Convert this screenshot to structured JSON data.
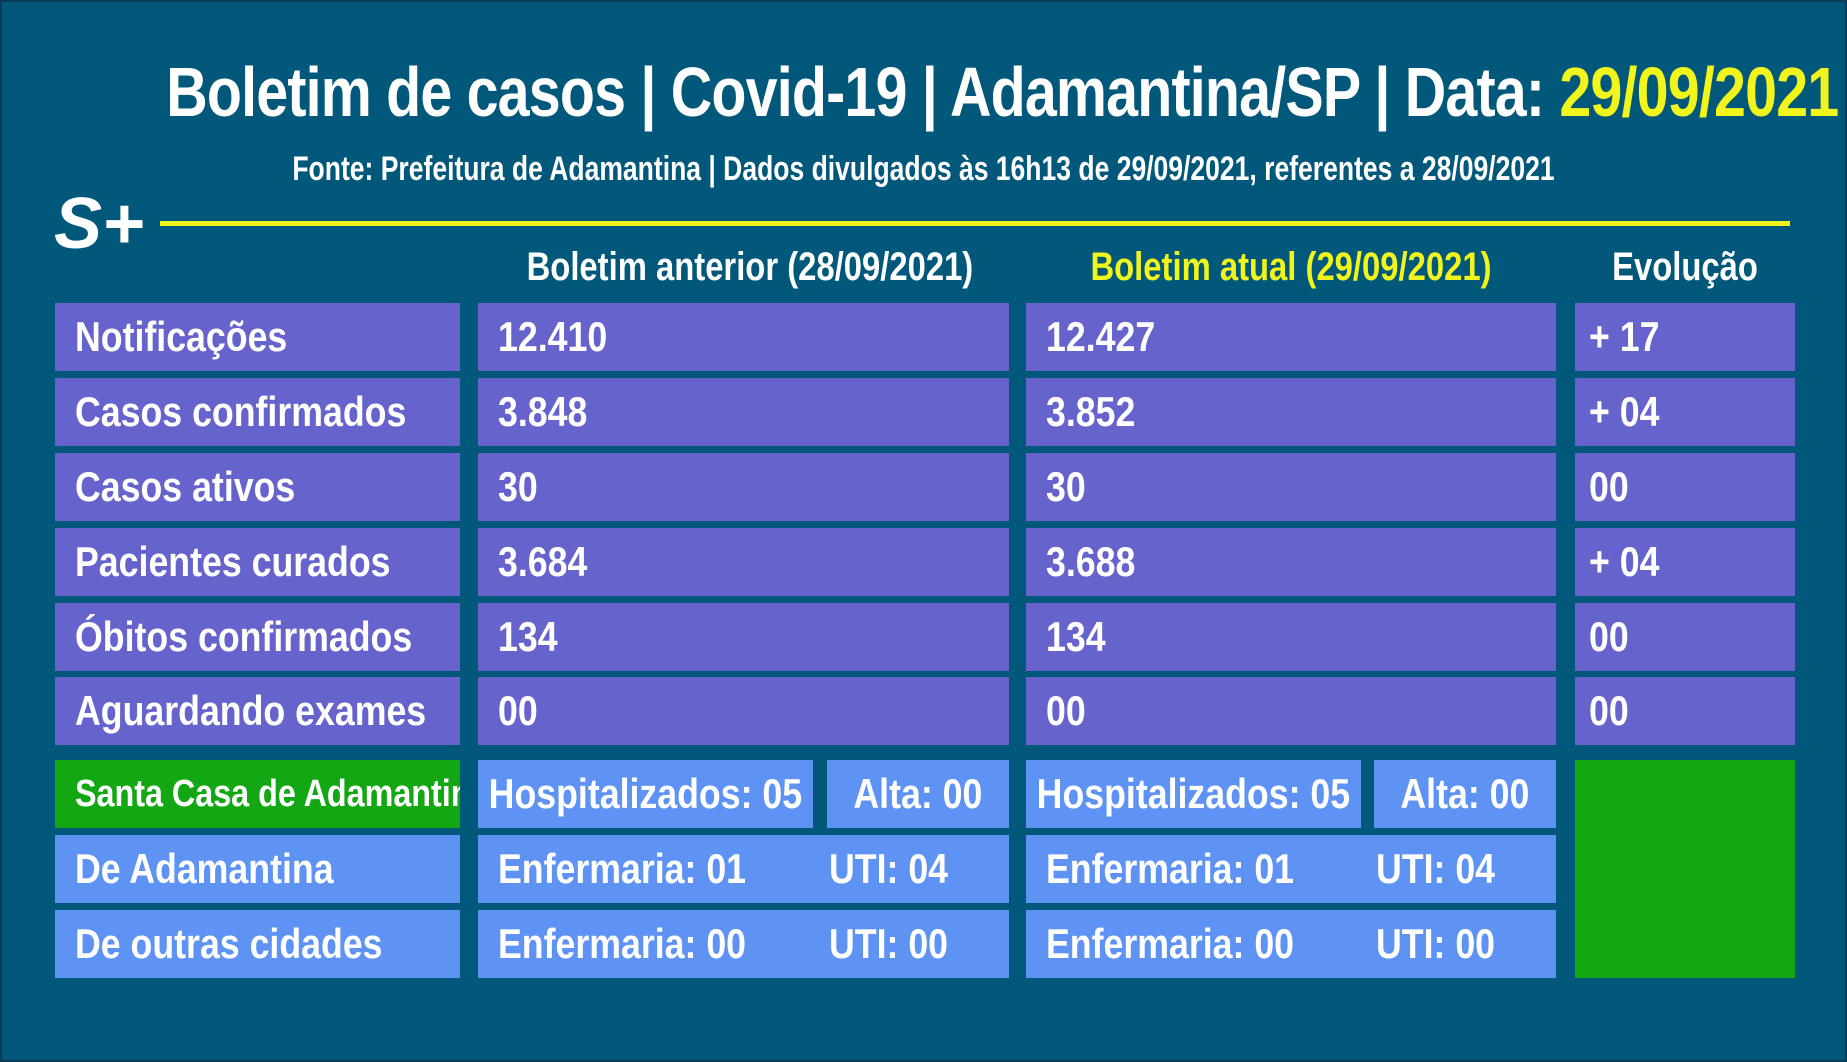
{
  "header": {
    "title_prefix": "Boletim de casos | Covid-19 | Adamantina/SP | Data: ",
    "title_date": "29/09/2021",
    "subtitle": "Fonte: Prefeitura de Adamantina | Dados divulgados às 16h13 de 29/09/2021, referentes a 28/09/2021",
    "logo": "S+"
  },
  "columns": {
    "previous": "Boletim anterior (28/09/2021)",
    "current": "Boletim atual (29/09/2021)",
    "evolution": "Evolução"
  },
  "rows": [
    {
      "label": "Notificações",
      "previous": "12.410",
      "current": "12.427",
      "evolution": "+ 17"
    },
    {
      "label": "Casos confirmados",
      "previous": "3.848",
      "current": "3.852",
      "evolution": "+ 04"
    },
    {
      "label": "Casos ativos",
      "previous": "30",
      "current": "30",
      "evolution": "00"
    },
    {
      "label": "Pacientes curados",
      "previous": "3.684",
      "current": "3.688",
      "evolution": "+ 04"
    },
    {
      "label": "Óbitos confirmados",
      "previous": "134",
      "current": "134",
      "evolution": "00"
    },
    {
      "label": "Aguardando exames",
      "previous": "00",
      "current": "00",
      "evolution": "00"
    }
  ],
  "hospital": {
    "label": "Santa Casa de Adamantina",
    "previous_hospitalized": "Hospitalizados: 05",
    "previous_discharged": "Alta: 00",
    "current_hospitalized": "Hospitalizados: 05",
    "current_discharged": "Alta: 00"
  },
  "origin": [
    {
      "label": "De Adamantina",
      "previous_ward": "Enfermaria: 01",
      "previous_icu": "UTI: 04",
      "current_ward": "Enfermaria: 01",
      "current_icu": "UTI: 04"
    },
    {
      "label": "De outras cidades",
      "previous_ward": "Enfermaria: 00",
      "previous_icu": "UTI: 00",
      "current_ward": "Enfermaria: 00",
      "current_icu": "UTI: 00"
    }
  ],
  "colors": {
    "background": "#02587a",
    "accent_yellow": "#f2f51c",
    "row_purple": "#6664cc",
    "row_blue": "#5e93f4",
    "hospital_green": "#13a713"
  }
}
